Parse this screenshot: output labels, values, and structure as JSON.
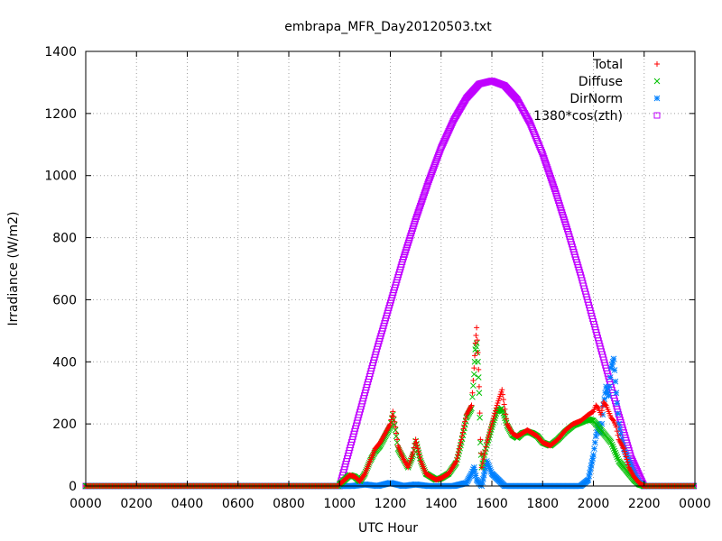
{
  "chart_data": {
    "type": "scatter",
    "title": "embrapa_MFR_Day20120503.txt",
    "xlabel": "UTC Hour",
    "ylabel": "Irradiance (W/m2)",
    "xlim": [
      0,
      24
    ],
    "ylim": [
      0,
      1400
    ],
    "x_ticks": [
      {
        "value": 0,
        "label": "0000"
      },
      {
        "value": 2,
        "label": "0200"
      },
      {
        "value": 4,
        "label": "0400"
      },
      {
        "value": 6,
        "label": "0600"
      },
      {
        "value": 8,
        "label": "0800"
      },
      {
        "value": 10,
        "label": "1000"
      },
      {
        "value": 12,
        "label": "1200"
      },
      {
        "value": 14,
        "label": "1400"
      },
      {
        "value": 16,
        "label": "1600"
      },
      {
        "value": 18,
        "label": "1800"
      },
      {
        "value": 20,
        "label": "2000"
      },
      {
        "value": 22,
        "label": "2200"
      },
      {
        "value": 24,
        "label": "0000"
      }
    ],
    "y_ticks": [
      0,
      200,
      400,
      600,
      800,
      1000,
      1200,
      1400
    ],
    "grid": true,
    "legend_position": "top-right",
    "series": [
      {
        "name": "Total",
        "marker": "plus",
        "color": "#ff0000",
        "x": [
          10.0,
          10.2,
          10.4,
          10.6,
          10.8,
          11.0,
          11.2,
          11.4,
          11.6,
          11.8,
          12.0,
          12.1,
          12.2,
          12.3,
          12.5,
          12.7,
          12.9,
          13.0,
          13.2,
          13.4,
          13.6,
          13.8,
          14.0,
          14.3,
          14.6,
          14.8,
          15.0,
          15.2,
          15.3,
          15.35,
          15.4,
          15.45,
          15.5,
          15.55,
          15.6,
          15.7,
          15.8,
          16.0,
          16.2,
          16.4,
          16.6,
          16.8,
          17.0,
          17.2,
          17.4,
          17.6,
          17.8,
          18.0,
          18.3,
          18.6,
          18.9,
          19.2,
          19.5,
          19.8,
          20.0,
          20.1,
          20.2,
          20.3,
          20.4,
          20.5,
          20.6,
          20.7,
          20.8,
          20.9,
          21.0,
          21.2,
          21.4,
          21.6,
          21.8,
          22.0
        ],
        "y": [
          5,
          20,
          35,
          30,
          15,
          40,
          80,
          120,
          140,
          170,
          200,
          240,
          190,
          130,
          90,
          60,
          110,
          150,
          80,
          40,
          30,
          20,
          25,
          40,
          80,
          150,
          230,
          260,
          380,
          460,
          510,
          430,
          320,
          150,
          60,
          100,
          140,
          200,
          260,
          310,
          200,
          170,
          160,
          170,
          180,
          170,
          160,
          140,
          130,
          150,
          180,
          200,
          210,
          230,
          240,
          260,
          250,
          230,
          270,
          260,
          240,
          220,
          210,
          190,
          150,
          120,
          60,
          30,
          10,
          0
        ]
      },
      {
        "name": "Diffuse",
        "marker": "cross",
        "color": "#00c000",
        "x": [
          10.0,
          10.2,
          10.4,
          10.6,
          10.8,
          11.0,
          11.2,
          11.4,
          11.6,
          11.8,
          12.0,
          12.1,
          12.2,
          12.3,
          12.5,
          12.7,
          12.9,
          13.0,
          13.2,
          13.4,
          13.6,
          13.8,
          14.0,
          14.3,
          14.6,
          14.8,
          15.0,
          15.2,
          15.3,
          15.35,
          15.4,
          15.45,
          15.5,
          15.55,
          15.6,
          15.7,
          15.8,
          16.0,
          16.2,
          16.4,
          16.6,
          16.8,
          17.0,
          17.2,
          17.4,
          17.6,
          17.8,
          18.0,
          18.3,
          18.6,
          18.9,
          19.2,
          19.5,
          19.8,
          20.0,
          20.1,
          20.2,
          20.3,
          20.4,
          20.5,
          20.6,
          20.7,
          20.8,
          20.9,
          21.0,
          21.2,
          21.4,
          21.6,
          21.8,
          22.0
        ],
        "y": [
          5,
          20,
          35,
          30,
          15,
          40,
          80,
          110,
          130,
          160,
          190,
          230,
          180,
          120,
          90,
          60,
          100,
          145,
          80,
          40,
          30,
          20,
          25,
          40,
          75,
          140,
          220,
          250,
          360,
          440,
          460,
          400,
          300,
          140,
          60,
          100,
          130,
          190,
          240,
          250,
          195,
          165,
          155,
          170,
          175,
          170,
          160,
          140,
          130,
          150,
          175,
          195,
          205,
          215,
          210,
          200,
          190,
          180,
          170,
          160,
          150,
          140,
          120,
          100,
          80,
          60,
          40,
          20,
          5,
          0
        ]
      },
      {
        "name": "DirNorm",
        "marker": "star",
        "color": "#0080ff",
        "x": [
          10.0,
          10.5,
          11.0,
          11.5,
          12.0,
          12.5,
          13.0,
          13.5,
          14.0,
          14.5,
          15.0,
          15.2,
          15.3,
          15.4,
          15.5,
          15.6,
          15.8,
          16.0,
          16.5,
          17.0,
          17.5,
          18.0,
          18.5,
          19.0,
          19.5,
          19.8,
          20.0,
          20.1,
          20.2,
          20.3,
          20.4,
          20.5,
          20.6,
          20.7,
          20.8,
          20.9,
          21.0,
          21.1,
          21.2,
          21.4,
          21.6,
          21.8,
          22.0
        ],
        "y": [
          0,
          0,
          5,
          0,
          10,
          0,
          5,
          0,
          0,
          0,
          10,
          40,
          60,
          20,
          10,
          0,
          80,
          40,
          0,
          0,
          0,
          0,
          0,
          0,
          0,
          20,
          100,
          160,
          200,
          170,
          260,
          320,
          290,
          380,
          410,
          300,
          200,
          150,
          120,
          80,
          40,
          10,
          0
        ]
      },
      {
        "name": "1380*cos(zth)",
        "marker": "square",
        "color": "#c000ff",
        "x": [
          10.0,
          10.5,
          11.0,
          11.5,
          12.0,
          12.5,
          13.0,
          13.5,
          14.0,
          14.5,
          15.0,
          15.5,
          16.0,
          16.5,
          17.0,
          17.5,
          18.0,
          18.5,
          19.0,
          19.5,
          20.0,
          20.5,
          21.0,
          21.5,
          22.0
        ],
        "y": [
          0,
          150,
          300,
          450,
          590,
          730,
          860,
          980,
          1090,
          1180,
          1250,
          1295,
          1305,
          1290,
          1245,
          1170,
          1070,
          950,
          820,
          680,
          530,
          380,
          230,
          90,
          0
        ]
      }
    ]
  }
}
